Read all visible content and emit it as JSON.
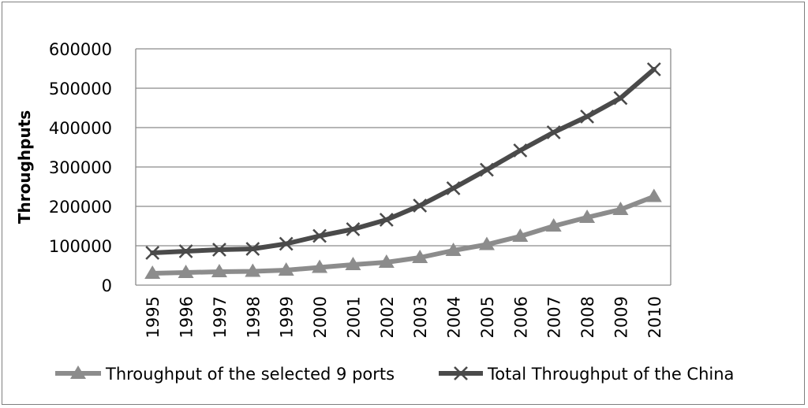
{
  "chart_data": {
    "type": "line",
    "title": "",
    "xlabel": "",
    "ylabel": "Throughputs",
    "categories": [
      "1995",
      "1996",
      "1997",
      "1998",
      "1999",
      "2000",
      "2001",
      "2002",
      "2003",
      "2004",
      "2005",
      "2006",
      "2007",
      "2008",
      "2009",
      "2010"
    ],
    "ylim": [
      0,
      600000
    ],
    "yticks": [
      "0",
      "100000",
      "200000",
      "300000",
      "400000",
      "500000",
      "600000"
    ],
    "grid": true,
    "legend_position": "bottom",
    "series": [
      {
        "name": "Throughput of the selected 9 ports",
        "marker": "triangle",
        "color": "#8c8c8c",
        "values": [
          30000,
          32000,
          34000,
          35000,
          38000,
          45000,
          52000,
          58000,
          70000,
          88000,
          103000,
          124000,
          150000,
          172000,
          192000,
          225000
        ]
      },
      {
        "name": "Total Throughput of the China",
        "marker": "x",
        "color": "#4a4a4a",
        "values": [
          82000,
          86000,
          90000,
          92000,
          105000,
          125000,
          142000,
          166000,
          202000,
          246000,
          293000,
          342000,
          388000,
          428000,
          475000,
          548000
        ]
      }
    ]
  }
}
